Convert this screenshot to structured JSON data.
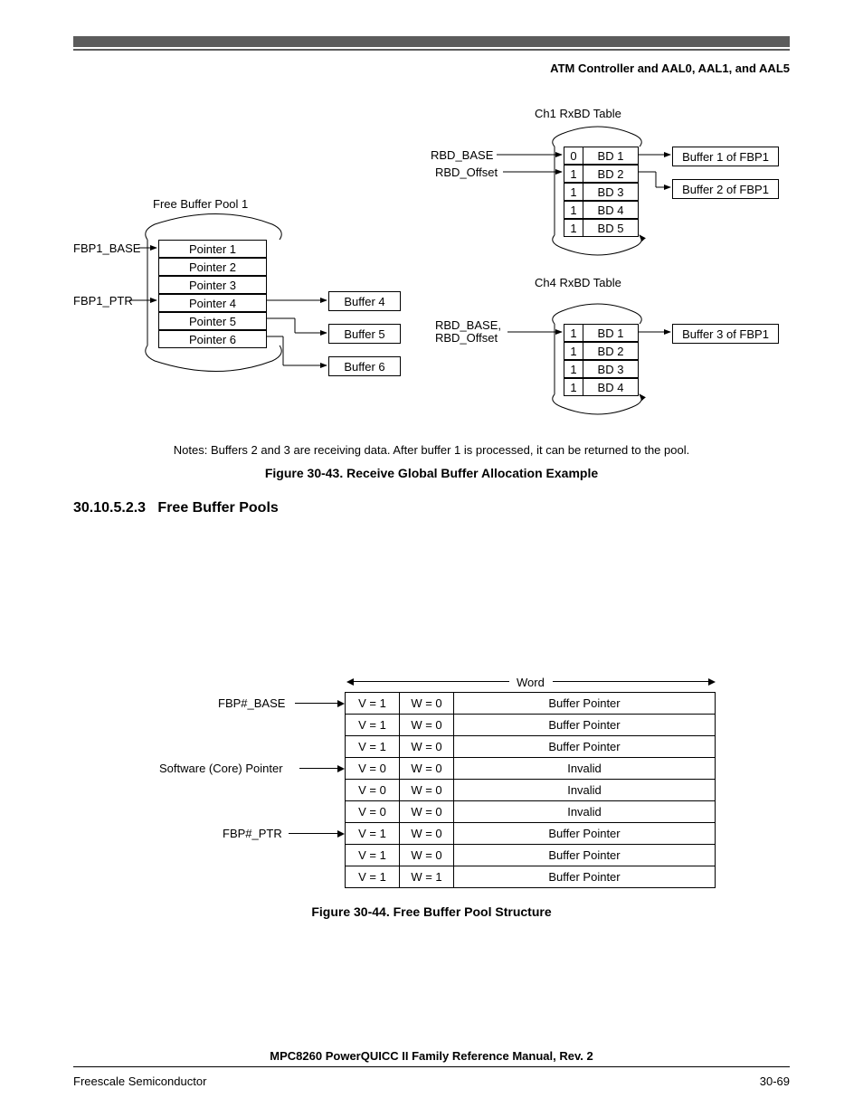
{
  "header": "ATM Controller and AAL0, AAL1, and AAL5",
  "fig1": {
    "title_ch1": "Ch1 RxBD Table",
    "title_ch4": "Ch4 RxBD Table",
    "fbp_title": "Free Buffer Pool 1",
    "labels": {
      "fbp1_base": "FBP1_BASE",
      "fbp1_ptr": "FBP1_PTR",
      "rbd_base": "RBD_BASE",
      "rbd_offset": "RBD_Offset",
      "rbd_base_offset_1": "RBD_BASE,",
      "rbd_base_offset_2": "RBD_Offset"
    },
    "pointers": [
      "Pointer 1",
      "Pointer 2",
      "Pointer 3",
      "Pointer 4",
      "Pointer 5",
      "Pointer 6"
    ],
    "buffers_small": [
      "Buffer 4",
      "Buffer 5",
      "Buffer 6"
    ],
    "ch1_rows": [
      {
        "f": "0",
        "b": "BD 1"
      },
      {
        "f": "1",
        "b": "BD 2"
      },
      {
        "f": "1",
        "b": "BD 3"
      },
      {
        "f": "1",
        "b": "BD 4"
      },
      {
        "f": "1",
        "b": "BD 5"
      }
    ],
    "ch4_rows": [
      {
        "f": "1",
        "b": "BD 1"
      },
      {
        "f": "1",
        "b": "BD 2"
      },
      {
        "f": "1",
        "b": "BD 3"
      },
      {
        "f": "1",
        "b": "BD 4"
      }
    ],
    "right_buffers": [
      "Buffer 1 of FBP1",
      "Buffer 2 of FBP1",
      "Buffer 3 of FBP1"
    ],
    "notes": "Notes: Buffers 2 and 3 are receiving data. After buffer 1 is processed, it can be returned to the pool.",
    "caption": "Figure 30-43. Receive Global Buffer Allocation Example"
  },
  "section": {
    "num": "30.10.5.2.3",
    "title": "Free Buffer Pools"
  },
  "fig2": {
    "word_label": "Word",
    "labels": {
      "fbp_base": "FBP#_BASE",
      "sw_ptr": "Software (Core) Pointer",
      "fbp_ptr": "FBP#_PTR"
    },
    "rows": [
      {
        "v": "V = 1",
        "w": "W = 0",
        "p": "Buffer Pointer"
      },
      {
        "v": "V = 1",
        "w": "W = 0",
        "p": "Buffer Pointer"
      },
      {
        "v": "V = 1",
        "w": "W = 0",
        "p": "Buffer Pointer"
      },
      {
        "v": "V = 0",
        "w": "W = 0",
        "p": "Invalid"
      },
      {
        "v": "V = 0",
        "w": "W = 0",
        "p": "Invalid"
      },
      {
        "v": "V = 0",
        "w": "W = 0",
        "p": "Invalid"
      },
      {
        "v": "V = 1",
        "w": "W = 0",
        "p": "Buffer Pointer"
      },
      {
        "v": "V = 1",
        "w": "W = 0",
        "p": "Buffer Pointer"
      },
      {
        "v": "V = 1",
        "w": "W = 1",
        "p": "Buffer Pointer"
      }
    ],
    "caption": "Figure 30-44. Free Buffer Pool Structure"
  },
  "footer": {
    "manual": "MPC8260 PowerQUICC II Family Reference Manual, Rev. 2",
    "left": "Freescale Semiconductor",
    "right": "30-69"
  }
}
